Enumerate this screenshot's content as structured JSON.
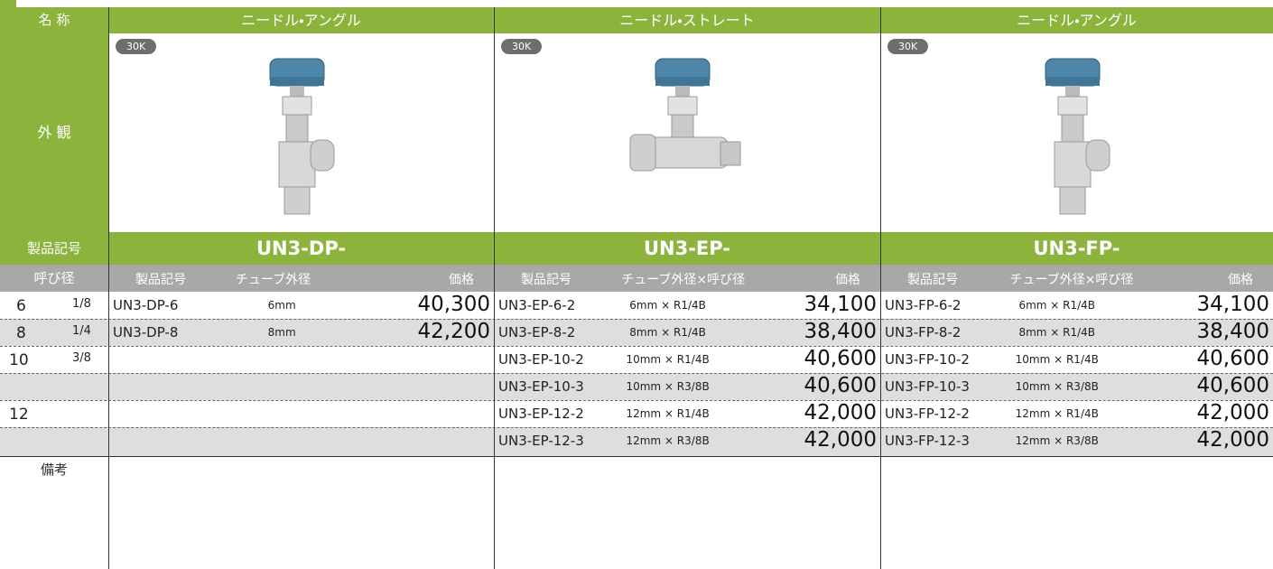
{
  "header": {
    "name_label": "名 称",
    "appearance_label": "外 観",
    "code_label": "製品記号",
    "size_label": "呼び径",
    "remarks_label": "備考"
  },
  "sizes": [
    {
      "size": "6",
      "fraction": "1/8"
    },
    {
      "size": "8",
      "fraction": "1/4"
    },
    {
      "size": "10",
      "fraction": "3/8"
    },
    {
      "size": null,
      "fraction": null
    },
    {
      "size": "12",
      "fraction": null
    },
    {
      "size": null,
      "fraction": null
    }
  ],
  "products": [
    {
      "name": "ニードル・アングル",
      "badge": "30K",
      "code": "UN3-DP-",
      "columns": [
        "製品記号",
        "チューブ外径",
        "価格"
      ],
      "rows": [
        [
          "UN3-DP-6",
          "6mm",
          "40,300"
        ],
        [
          "UN3-DP-8",
          "8mm",
          "42,200"
        ]
      ]
    },
    {
      "name": "ニードル・ストレート",
      "badge": "30K",
      "code": "UN3-EP-",
      "columns": [
        "製品記号",
        "チューブ外径×呼び径",
        "価格"
      ],
      "rows": [
        [
          "UN3-EP-6-2",
          "6mm × R1/4B",
          "34,100"
        ],
        [
          "UN3-EP-8-2",
          "8mm × R1/4B",
          "38,400"
        ],
        [
          "UN3-EP-10-2",
          "10mm × R1/4B",
          "40,600"
        ],
        [
          "UN3-EP-10-3",
          "10mm × R3/8B",
          "40,600"
        ],
        [
          "UN3-EP-12-2",
          "12mm × R1/4B",
          "42,000"
        ],
        [
          "UN3-EP-12-3",
          "12mm × R3/8B",
          "42,000"
        ]
      ]
    },
    {
      "name": "ニードル・アングル",
      "badge": "30K",
      "code": "UN3-FP-",
      "columns": [
        "製品記号",
        "チューブ外径×呼び径",
        "価格"
      ],
      "rows": [
        [
          "UN3-FP-6-2",
          "6mm × R1/4B",
          "34,100"
        ],
        [
          "UN3-FP-8-2",
          "8mm × R1/4B",
          "38,400"
        ],
        [
          "UN3-FP-10-2",
          "10mm × R1/4B",
          "40,600"
        ],
        [
          "UN3-FP-10-3",
          "10mm × R3/8B",
          "40,600"
        ],
        [
          "UN3-FP-12-2",
          "12mm × R1/4B",
          "42,000"
        ],
        [
          "UN3-FP-12-3",
          "12mm × R3/8B",
          "42,000"
        ]
      ]
    }
  ]
}
